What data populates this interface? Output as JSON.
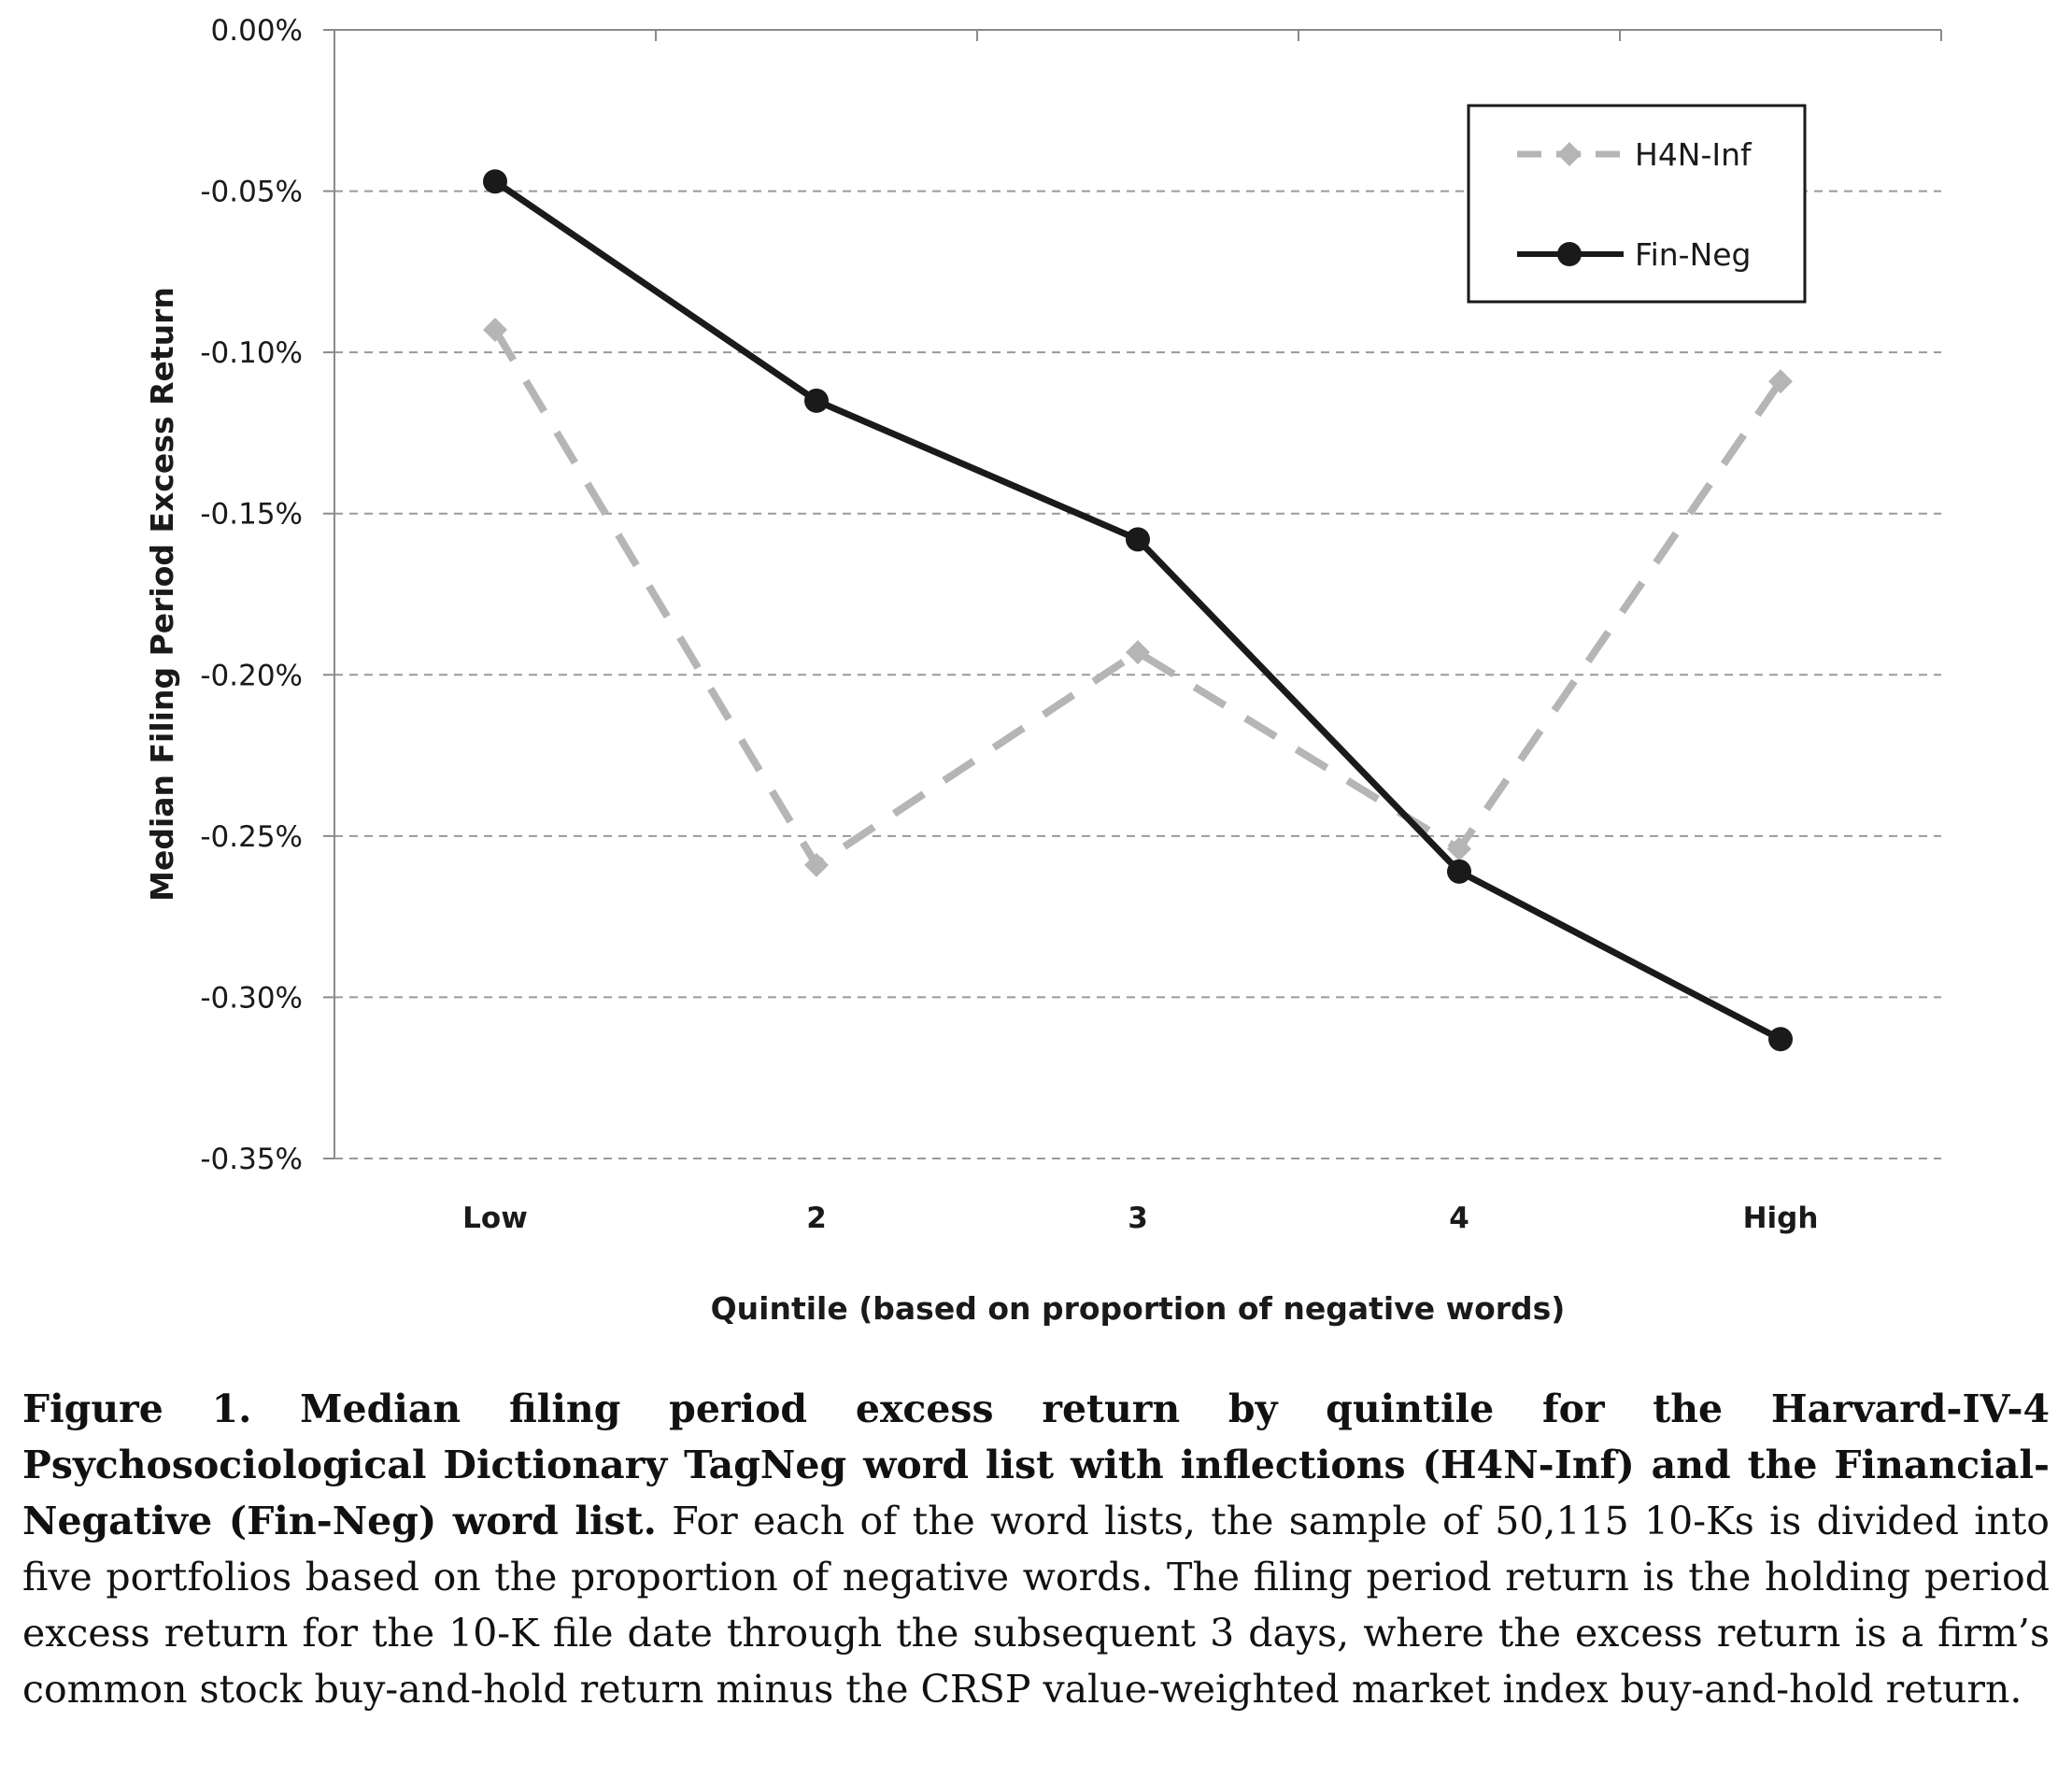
{
  "chart_data": {
    "type": "line",
    "categories": [
      "Low",
      "2",
      "3",
      "4",
      "High"
    ],
    "series": [
      {
        "name": "H4N-Inf",
        "values": [
          -0.093,
          -0.259,
          -0.193,
          -0.254,
          -0.109
        ],
        "color": "#b5b5b5",
        "style": "dashed",
        "marker": "diamond"
      },
      {
        "name": "Fin-Neg",
        "values": [
          -0.047,
          -0.115,
          -0.158,
          -0.261,
          -0.313
        ],
        "color": "#1a1a1a",
        "style": "solid",
        "marker": "circle"
      }
    ],
    "ylim": [
      -0.35,
      0.0
    ],
    "yticks": [
      0.0,
      -0.05,
      -0.1,
      -0.15,
      -0.2,
      -0.25,
      -0.3,
      -0.35
    ],
    "ytick_labels": [
      "0.00%",
      "-0.05%",
      "-0.10%",
      "-0.15%",
      "-0.20%",
      "-0.25%",
      "-0.30%",
      "-0.35%"
    ],
    "xlabel": "Quintile (based on proportion of negative words)",
    "ylabel": "Median Filing Period Excess Return",
    "grid": true,
    "grid_style": "dashed horizontal",
    "legend_position": "top-right"
  },
  "caption": {
    "lead": "Figure 1.   Median filing period excess return by quintile for the Harvard-IV-4 Psychosociological Dictionary TagNeg word list with inflections (H4N-Inf) and the Financial-Negative (Fin-Neg) word list.",
    "body": " For each of the word lists, the sample of 50,115 10-Ks is divided into five portfolios based on the proportion of negative words. The filing period return is the holding period excess return for the 10-K file date through the subsequent 3 days, where the excess return is a firm’s common stock buy-and-hold return minus the CRSP value-weighted market index buy-and-hold return."
  }
}
